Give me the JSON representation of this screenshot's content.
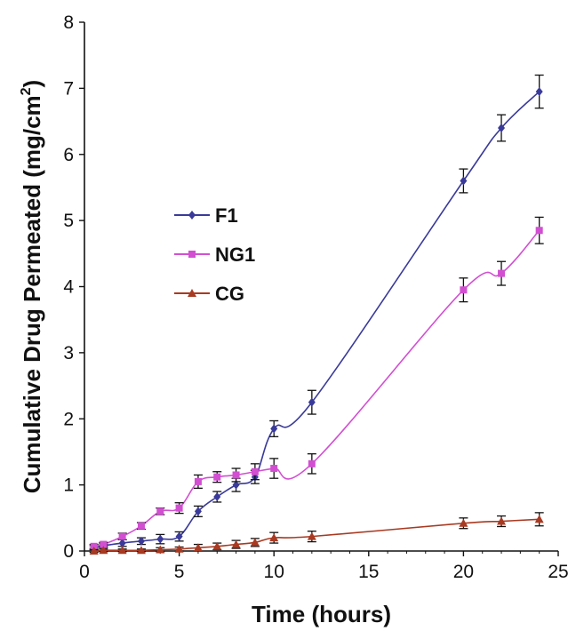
{
  "chart_data": {
    "type": "line",
    "title": "",
    "xlabel": "Time (hours)",
    "ylabel": "Cumulative Drug Permeated (mg/cm²)",
    "xlim": [
      0,
      25
    ],
    "ylim": [
      0,
      8
    ],
    "xticks": [
      "0",
      "5",
      "10",
      "15",
      "20",
      "25"
    ],
    "yticks": [
      "0",
      "1",
      "2",
      "3",
      "4",
      "5",
      "6",
      "7",
      "8"
    ],
    "grid": false,
    "legend_position": "center-left",
    "series": [
      {
        "name": "F1",
        "color": "#3a3a9a",
        "marker": "diamond",
        "x": [
          0.5,
          1,
          2,
          3,
          4,
          5,
          6,
          7,
          8,
          9,
          10,
          12,
          20,
          22,
          24
        ],
        "y": [
          0.05,
          0.08,
          0.12,
          0.15,
          0.18,
          0.22,
          0.6,
          0.82,
          1.0,
          1.12,
          1.85,
          2.25,
          5.6,
          6.4,
          6.95
        ],
        "err": [
          0.03,
          0.03,
          0.05,
          0.05,
          0.07,
          0.07,
          0.08,
          0.08,
          0.1,
          0.1,
          0.12,
          0.18,
          0.18,
          0.2,
          0.25
        ]
      },
      {
        "name": "NG1",
        "color": "#d24fd2",
        "marker": "square",
        "x": [
          0.5,
          1,
          2,
          3,
          4,
          5,
          6,
          7,
          8,
          9,
          10,
          12,
          20,
          22,
          24
        ],
        "y": [
          0.07,
          0.1,
          0.22,
          0.38,
          0.6,
          0.65,
          1.05,
          1.12,
          1.15,
          1.2,
          1.25,
          1.32,
          3.95,
          4.2,
          4.85
        ],
        "err": [
          0.03,
          0.03,
          0.05,
          0.05,
          0.05,
          0.08,
          0.1,
          0.08,
          0.1,
          0.12,
          0.15,
          0.15,
          0.18,
          0.18,
          0.2
        ]
      },
      {
        "name": "CG",
        "color": "#a83a22",
        "marker": "triangle",
        "x": [
          0.5,
          1,
          2,
          3,
          4,
          5,
          6,
          7,
          8,
          9,
          10,
          12,
          20,
          22,
          24
        ],
        "y": [
          0.0,
          0.01,
          0.01,
          0.01,
          0.02,
          0.03,
          0.05,
          0.07,
          0.1,
          0.13,
          0.2,
          0.22,
          0.42,
          0.45,
          0.48
        ],
        "err": [
          0.02,
          0.02,
          0.02,
          0.02,
          0.03,
          0.03,
          0.05,
          0.05,
          0.06,
          0.06,
          0.08,
          0.08,
          0.08,
          0.08,
          0.1
        ]
      }
    ]
  }
}
